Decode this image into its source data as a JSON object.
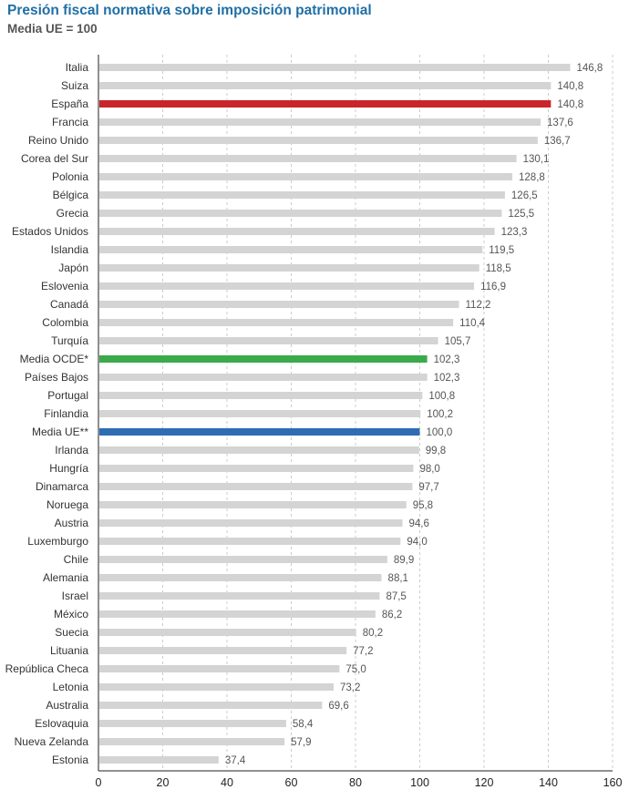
{
  "title": "Presión fiscal normativa sobre imposición patrimonial",
  "subtitle": "Media UE = 100",
  "colors": {
    "default": "#d4d4d4",
    "highlight_spain": "#c8262b",
    "highlight_oecd": "#3aaa4a",
    "highlight_eu": "#2f6db3",
    "grid": "#cccccc",
    "axis": "#222222"
  },
  "chart_data": {
    "type": "bar",
    "orientation": "horizontal",
    "title": "Presión fiscal normativa sobre imposición patrimonial",
    "subtitle": "Media UE = 100",
    "xlim": [
      0,
      160
    ],
    "xticks": [
      0,
      20,
      40,
      60,
      80,
      100,
      120,
      140,
      160
    ],
    "grid": "vertical dashed",
    "categories": [
      "Italia",
      "Suiza",
      "España",
      "Francia",
      "Reino Unido",
      "Corea del Sur",
      "Polonia",
      "Bélgica",
      "Grecia",
      "Estados  Unidos",
      "Islandia",
      "Japón",
      "Eslovenia",
      "Canadá",
      "Colombia",
      "Turquía",
      "Media OCDE*",
      "Países Bajos",
      "Portugal",
      "Finlandia",
      "Media UE**",
      "Irlanda",
      "Hungría",
      "Dinamarca",
      "Noruega",
      "Austria",
      "Luxemburgo",
      "Chile",
      "Alemania",
      "Israel",
      "México",
      "Suecia",
      "Lituania",
      "República Checa",
      "Letonia",
      "Australia",
      "Eslovaquia",
      "Nueva Zelanda",
      "Estonia"
    ],
    "values": [
      146.8,
      140.8,
      140.8,
      137.6,
      136.7,
      130.1,
      128.8,
      126.5,
      125.5,
      123.3,
      119.5,
      118.5,
      116.9,
      112.2,
      110.4,
      105.7,
      102.3,
      102.3,
      100.8,
      100.2,
      100.0,
      99.8,
      98.0,
      97.7,
      95.8,
      94.6,
      94.0,
      89.9,
      88.1,
      87.5,
      86.2,
      80.2,
      77.2,
      75.0,
      73.2,
      69.6,
      58.4,
      57.9,
      37.4
    ],
    "value_labels": [
      "146,8",
      "140,8",
      "140,8",
      "137,6",
      "136,7",
      "130,1",
      "128,8",
      "126,5",
      "125,5",
      "123,3",
      "119,5",
      "118,5",
      "116,9",
      "112,2",
      "110,4",
      "105,7",
      "102,3",
      "102,3",
      "100,8",
      "100,2",
      "100,0",
      "99,8",
      "98,0",
      "97,7",
      "95,8",
      "94,6",
      "94,0",
      "89,9",
      "88,1",
      "87,5",
      "86,2",
      "80,2",
      "77,2",
      "75,0",
      "73,2",
      "69,6",
      "58,4",
      "57,9",
      "37,4"
    ],
    "highlights": {
      "España": "highlight_spain",
      "Media OCDE*": "highlight_oecd",
      "Media UE**": "highlight_eu"
    }
  }
}
